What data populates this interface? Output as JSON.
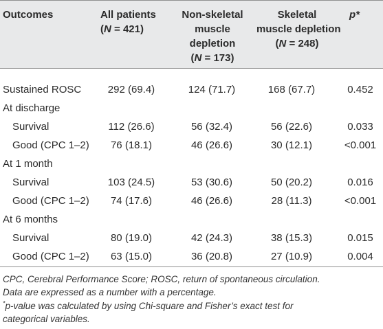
{
  "table": {
    "headers": {
      "outcomes": "Outcomes",
      "all_patients_l1": "All patients",
      "all_patients_l2": "(N = 421)",
      "non_skeletal_l1": "Non-skeletal",
      "non_skeletal_l2": "muscle",
      "non_skeletal_l3": "depletion",
      "non_skeletal_l4": "(N = 173)",
      "skeletal_l1": "Skeletal",
      "skeletal_l2": "muscle depletion",
      "skeletal_l3": "(N = 248)",
      "p": "p*"
    },
    "rows": [
      {
        "label": "Sustained ROSC",
        "indent": false,
        "all": "292 (69.4)",
        "non": "124 (71.7)",
        "sk": "168 (67.7)",
        "p": "0.452"
      },
      {
        "label": "At discharge",
        "indent": false,
        "all": "",
        "non": "",
        "sk": "",
        "p": ""
      },
      {
        "label": "Survival",
        "indent": true,
        "all": "112 (26.6)",
        "non": "56 (32.4)",
        "sk": "56 (22.6)",
        "p": "0.033"
      },
      {
        "label": "Good (CPC 1–2)",
        "indent": true,
        "all": "76 (18.1)",
        "non": "46 (26.6)",
        "sk": "30 (12.1)",
        "p": "<0.001"
      },
      {
        "label": "At 1 month",
        "indent": false,
        "all": "",
        "non": "",
        "sk": "",
        "p": ""
      },
      {
        "label": "Survival",
        "indent": true,
        "all": "103 (24.5)",
        "non": "53 (30.6)",
        "sk": "50 (20.2)",
        "p": "0.016"
      },
      {
        "label": "Good (CPC 1–2)",
        "indent": true,
        "all": "74 (17.6)",
        "non": "46 (26.6)",
        "sk": "28 (11.3)",
        "p": "<0.001"
      },
      {
        "label": "At 6 months",
        "indent": false,
        "all": "",
        "non": "",
        "sk": "",
        "p": ""
      },
      {
        "label": "Survival",
        "indent": true,
        "all": "80 (19.0)",
        "non": "42 (24.3)",
        "sk": "38 (15.3)",
        "p": "0.015"
      },
      {
        "label": "Good (CPC 1–2)",
        "indent": true,
        "all": "63 (15.0)",
        "non": "36 (20.8)",
        "sk": "27 (10.9)",
        "p": "0.004"
      }
    ]
  },
  "footnotes": {
    "abbrev": "CPC, Cerebral Performance Score; ROSC, return of spontaneous circulation.",
    "data_note": "Data are expressed as a number with a percentage.",
    "p_mark": "*",
    "p_note_l1": "p-value was calculated by using Chi-square and Fisher’s exact test for",
    "p_note_l2": "categorical variables."
  }
}
